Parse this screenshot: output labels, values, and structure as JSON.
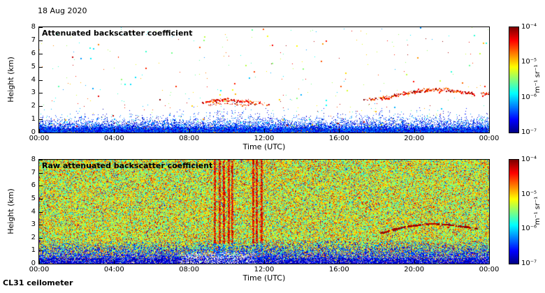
{
  "figure": {
    "date_label": "18 Aug 2020",
    "instrument_label": "CL31 ceilometer",
    "background_color": "#ffffff"
  },
  "panels": [
    {
      "title": "Attenuated backscatter coefficient",
      "xlabel": "Time (UTC)",
      "ylabel": "Height (km)",
      "x_tick_labels": [
        "00:00",
        "04:00",
        "08:00",
        "12:00",
        "16:00",
        "20:00",
        "00:00"
      ],
      "y_tick_values": [
        0,
        1,
        2,
        3,
        4,
        5,
        6,
        7,
        8
      ],
      "colorbar": {
        "label": "m⁻¹ sr⁻¹",
        "tick_labels": [
          "10⁻⁴",
          "10⁻⁵",
          "10⁻⁶",
          "10⁻⁷"
        ]
      }
    },
    {
      "title": "Raw attenuated backscatter coefficient",
      "xlabel": "Time (UTC)",
      "ylabel": "Height (km)",
      "x_tick_labels": [
        "00:00",
        "04:00",
        "08:00",
        "12:00",
        "16:00",
        "20:00",
        "00:00"
      ],
      "y_tick_values": [
        0,
        1,
        2,
        3,
        4,
        5,
        6,
        7,
        8
      ],
      "colorbar": {
        "label": "m⁻¹ sr⁻¹",
        "tick_labels": [
          "10⁻⁴",
          "10⁻⁵",
          "10⁻⁶",
          "10⁻⁷"
        ]
      }
    }
  ],
  "chart_data": [
    {
      "type": "heatmap",
      "title": "Attenuated backscatter coefficient",
      "date": "18 Aug 2020",
      "instrument": "CL31 ceilometer",
      "xlabel": "Time (UTC)",
      "ylabel": "Height (km)",
      "x_range_hours": [
        0,
        24
      ],
      "x_tick_labels": [
        "00:00",
        "04:00",
        "08:00",
        "12:00",
        "16:00",
        "20:00",
        "00:00"
      ],
      "y_range_km": [
        0,
        8
      ],
      "colorbar": {
        "scale": "log",
        "min": 1e-07,
        "max": 0.0001,
        "units": "m⁻¹ sr⁻¹",
        "colormap": "jet"
      },
      "background_value": "below 1e-7 (white)",
      "features": [
        {
          "name": "boundary-layer-aerosol",
          "time_h": [
            0,
            24
          ],
          "height_km": [
            0,
            1.2
          ],
          "backscatter": "1e-6 to 1e-5",
          "description": "dense blue backscatter band near the surface with vertical noise spikes"
        },
        {
          "name": "elevated-layer-morning",
          "time_h": [
            8.7,
            12.3
          ],
          "height_km": [
            2.0,
            2.9
          ],
          "backscatter": "~1e-5",
          "description": "broken orange-red aerosol/cloud layer",
          "center_km_points": [
            [
              8.7,
              2.3
            ],
            [
              9.3,
              2.45
            ],
            [
              10.0,
              2.5
            ],
            [
              10.9,
              2.4
            ],
            [
              11.5,
              2.3
            ],
            [
              12.3,
              2.1
            ]
          ]
        },
        {
          "name": "elevated-layer-evening",
          "time_h": [
            17.3,
            24
          ],
          "height_km": [
            2.4,
            3.4
          ],
          "backscatter": "~1e-5",
          "description": "orange-red aerosol/cloud layer rising to ~3.3 km near 21:00",
          "center_km_points": [
            [
              17.3,
              2.45
            ],
            [
              18.5,
              2.7
            ],
            [
              19.5,
              3.0
            ],
            [
              20.5,
              3.25
            ],
            [
              21.5,
              3.3
            ],
            [
              22.3,
              3.15
            ],
            [
              23.2,
              3.0
            ],
            [
              24,
              2.95
            ]
          ]
        },
        {
          "name": "scattered-noise-specks",
          "time_h": [
            0,
            24
          ],
          "height_km": [
            0,
            8
          ],
          "description": "sparse multicoloured single-pixel noise over the whole field"
        }
      ]
    },
    {
      "type": "heatmap",
      "title": "Raw attenuated backscatter coefficient",
      "xlabel": "Time (UTC)",
      "ylabel": "Height (km)",
      "x_range_hours": [
        0,
        24
      ],
      "x_tick_labels": [
        "00:00",
        "04:00",
        "08:00",
        "12:00",
        "16:00",
        "20:00",
        "00:00"
      ],
      "y_range_km": [
        0,
        8
      ],
      "colorbar": {
        "scale": "log",
        "min": 1e-07,
        "max": 0.0001,
        "units": "m⁻¹ sr⁻¹",
        "colormap": "jet"
      },
      "features": [
        {
          "name": "background-noise",
          "time_h": [
            0,
            24
          ],
          "height_km": [
            1.8,
            8
          ],
          "backscatter": "~2e-6 to 1e-5",
          "description": "dense green-yellow speckle noise filling the field"
        },
        {
          "name": "low-level-blue-band",
          "time_h": [
            0,
            24
          ],
          "height_km": [
            0,
            1.8
          ],
          "backscatter": "<1e-6",
          "description": "blue-violet band, dark navy below 0.5 km"
        },
        {
          "name": "bright-surface-patch",
          "time_h": [
            7.5,
            11.5
          ],
          "height_km": [
            0,
            0.9
          ],
          "description": "whitish low-signal patch near the surface"
        },
        {
          "name": "vertical-red-streaks",
          "times_h": [
            9.35,
            9.6,
            9.85,
            10.1,
            10.3,
            11.4,
            11.6,
            11.85
          ],
          "height_km": [
            1.6,
            8
          ],
          "backscatter": "~1e-4",
          "description": "full-depth red streaks (precipitation/noise bursts) between ~09:20 and 12:00"
        },
        {
          "name": "elevated-layer-evening",
          "time_h": [
            18.2,
            23.3
          ],
          "height_km": [
            2.4,
            3.15
          ],
          "backscatter": "~1e-4",
          "description": "dark red broken arc peaking near 3.1 km around 20:45",
          "center_km_points": [
            [
              18.2,
              2.4
            ],
            [
              19.5,
              2.9
            ],
            [
              20.8,
              3.12
            ],
            [
              21.8,
              3.05
            ],
            [
              22.6,
              2.9
            ],
            [
              23.3,
              2.75
            ]
          ]
        }
      ]
    }
  ]
}
